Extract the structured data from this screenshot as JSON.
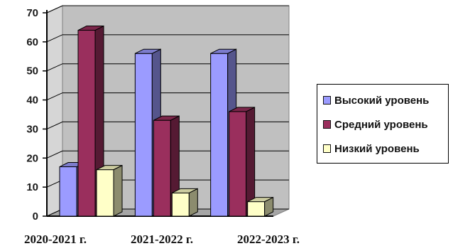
{
  "chart_data": {
    "type": "bar",
    "categories": [
      "2020-2021 г.",
      "2021-2022 г.",
      "2022-2023 г."
    ],
    "series": [
      {
        "name": "Высокий уровень",
        "values": [
          17,
          56,
          56
        ],
        "color": "#9b9bff"
      },
      {
        "name": "Средний уровень",
        "values": [
          64,
          33,
          36
        ],
        "color": "#9a2f5d"
      },
      {
        "name": "Низкий уровень",
        "values": [
          16,
          8,
          5
        ],
        "color": "#ffffc8"
      }
    ],
    "ylim": [
      0,
      70
    ],
    "yticks": [
      0,
      10,
      20,
      30,
      40,
      50,
      60,
      70
    ],
    "grid": true,
    "legend_position": "right",
    "style": "3d-clustered-column",
    "wall_color": "#c0c0c0"
  }
}
